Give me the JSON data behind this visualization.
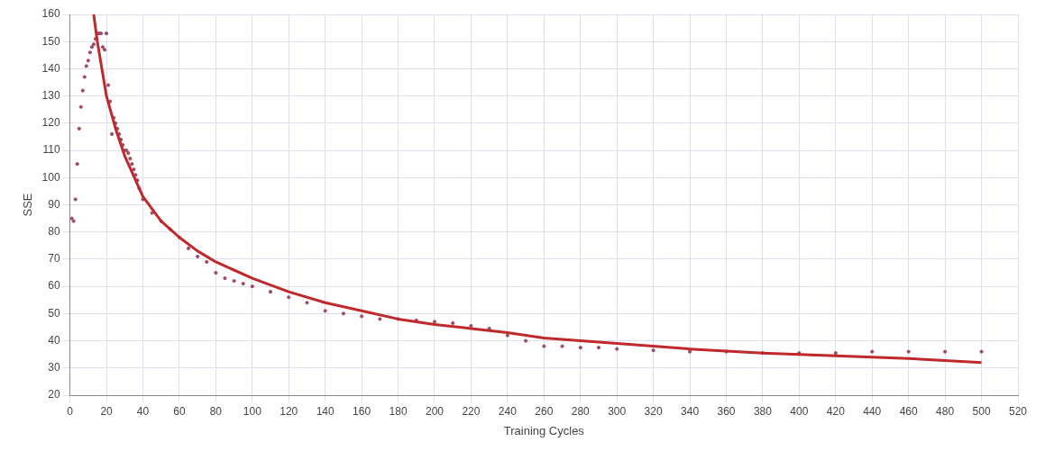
{
  "chart_data": {
    "type": "scatter",
    "xlabel": "Training Cycles",
    "ylabel": "SSE",
    "xlim": [
      0,
      520
    ],
    "xticks": [
      0,
      20,
      40,
      60,
      80,
      100,
      120,
      140,
      160,
      180,
      200,
      220,
      240,
      260,
      280,
      300,
      320,
      340,
      360,
      380,
      400,
      420,
      440,
      460,
      480,
      500,
      520
    ],
    "ylim": [
      20,
      160
    ],
    "yticks": [
      20,
      30,
      40,
      50,
      60,
      70,
      80,
      90,
      100,
      110,
      120,
      130,
      140,
      150,
      160
    ],
    "grid": true,
    "legend": false,
    "marker": "circle",
    "series": [
      {
        "type": "scatter",
        "color": "#a04a68",
        "x": [
          1,
          2,
          3,
          4,
          5,
          6,
          7,
          8,
          9,
          10,
          11,
          12,
          13,
          14,
          15,
          16,
          17,
          18,
          19,
          20,
          21,
          22,
          23,
          24,
          25,
          26,
          27,
          28,
          29,
          30,
          31,
          32,
          33,
          34,
          35,
          36,
          37,
          38,
          40,
          45,
          50,
          55,
          60,
          65,
          70,
          75,
          80,
          85,
          90,
          95,
          100,
          110,
          120,
          130,
          140,
          150,
          160,
          170,
          180,
          190,
          200,
          210,
          220,
          230,
          240,
          250,
          260,
          270,
          280,
          290,
          300,
          320,
          340,
          360,
          380,
          400,
          420,
          440,
          460,
          480,
          500
        ],
        "values": [
          85,
          84,
          92,
          105,
          118,
          126,
          132,
          137,
          141,
          143,
          146,
          148,
          149,
          151,
          153,
          153,
          153,
          148,
          147,
          153,
          134,
          128,
          116,
          122,
          120,
          118,
          116,
          114,
          112,
          110,
          110,
          109,
          107,
          105,
          103,
          101,
          99,
          96,
          92,
          87,
          84,
          81,
          78,
          74,
          71,
          69,
          65,
          63,
          62,
          61,
          60,
          58,
          56,
          54,
          51,
          50,
          49,
          48,
          48,
          47.5,
          47,
          46.5,
          45.5,
          44.5,
          42,
          40,
          38,
          38,
          37.5,
          37.5,
          37,
          36.5,
          36,
          36,
          35.5,
          35.5,
          35.5,
          36,
          36,
          36,
          36
        ]
      },
      {
        "type": "line",
        "color": "#c0282c",
        "marker": "none",
        "x": [
          13,
          15,
          20,
          25,
          30,
          40,
          50,
          60,
          70,
          80,
          100,
          120,
          140,
          160,
          180,
          200,
          220,
          240,
          260,
          280,
          300,
          340,
          380,
          420,
          460,
          500
        ],
        "values": [
          160,
          150,
          130,
          118,
          108,
          93,
          84,
          78,
          73,
          69,
          63,
          58,
          54,
          51,
          48,
          46,
          44.5,
          43,
          41,
          40,
          39,
          37,
          35.5,
          34.5,
          33.5,
          32
        ]
      }
    ]
  }
}
